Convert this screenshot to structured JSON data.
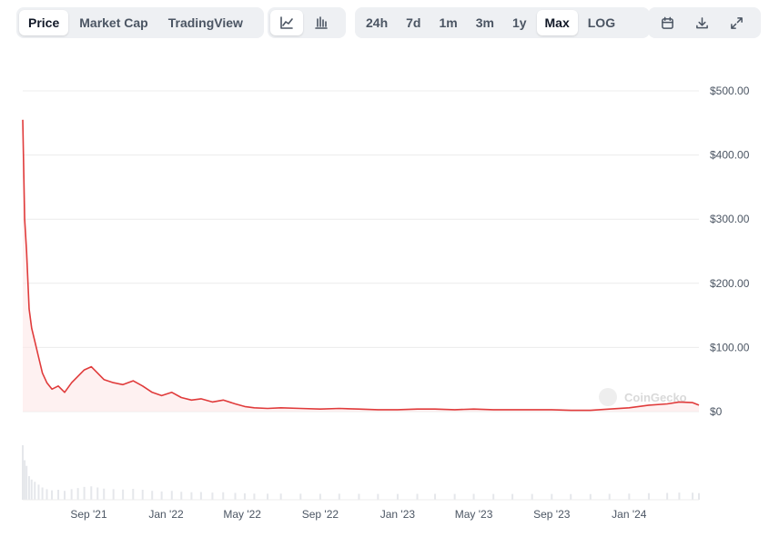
{
  "toolbar": {
    "view_tabs": [
      {
        "label": "Price",
        "active": true
      },
      {
        "label": "Market Cap",
        "active": false
      },
      {
        "label": "TradingView",
        "active": false
      }
    ],
    "chart_types": [
      {
        "icon": "line-chart-icon",
        "active": true
      },
      {
        "icon": "candlestick-chart-icon",
        "active": false
      }
    ],
    "ranges": [
      {
        "label": "24h",
        "active": false
      },
      {
        "label": "7d",
        "active": false
      },
      {
        "label": "1m",
        "active": false
      },
      {
        "label": "3m",
        "active": false
      },
      {
        "label": "1y",
        "active": false
      },
      {
        "label": "Max",
        "active": true
      },
      {
        "label": "LOG",
        "active": false
      }
    ],
    "actions": [
      {
        "icon": "calendar-icon"
      },
      {
        "icon": "download-icon"
      },
      {
        "icon": "expand-icon"
      }
    ]
  },
  "watermark": "CoinGecko",
  "colors": {
    "line": "#e03b3b",
    "fill": "#fde8e8",
    "grid": "#ececec",
    "volume": "#e5e7eb"
  },
  "chart_data": {
    "type": "line",
    "title": "",
    "xlabel": "",
    "ylabel": "",
    "ylim": [
      0,
      500
    ],
    "y_ticks": [
      "$500.00",
      "$400.00",
      "$300.00",
      "$200.00",
      "$100.00",
      "$0"
    ],
    "y_tick_values": [
      500,
      400,
      300,
      200,
      100,
      0
    ],
    "x_ticks": [
      "Sep '21",
      "Jan '22",
      "May '22",
      "Sep '22",
      "Jan '23",
      "May '23",
      "Sep '23",
      "Jan '24"
    ],
    "x_tick_dates": [
      "2021-09-01",
      "2022-01-01",
      "2022-05-01",
      "2022-09-01",
      "2023-01-01",
      "2023-05-01",
      "2023-09-01",
      "2024-01-01"
    ],
    "x_range": [
      "2021-05-20",
      "2024-04-20"
    ],
    "grid": true,
    "series": [
      {
        "x": [
          "2021-05-20",
          "2021-05-23",
          "2021-05-26",
          "2021-05-30",
          "2021-06-03",
          "2021-06-08",
          "2021-06-14",
          "2021-06-20",
          "2021-06-27",
          "2021-07-05",
          "2021-07-15",
          "2021-07-25",
          "2021-08-05",
          "2021-08-15",
          "2021-08-25",
          "2021-09-05",
          "2021-09-15",
          "2021-09-25",
          "2021-10-10",
          "2021-10-25",
          "2021-11-10",
          "2021-11-25",
          "2021-12-10",
          "2021-12-25",
          "2022-01-10",
          "2022-01-25",
          "2022-02-10",
          "2022-02-25",
          "2022-03-15",
          "2022-04-01",
          "2022-04-20",
          "2022-05-05",
          "2022-05-20",
          "2022-06-10",
          "2022-07-01",
          "2022-08-01",
          "2022-09-01",
          "2022-10-01",
          "2022-11-01",
          "2022-12-01",
          "2023-01-01",
          "2023-02-01",
          "2023-03-01",
          "2023-04-01",
          "2023-05-01",
          "2023-06-01",
          "2023-07-01",
          "2023-08-01",
          "2023-09-01",
          "2023-10-01",
          "2023-11-01",
          "2023-12-01",
          "2024-01-01",
          "2024-02-01",
          "2024-03-01",
          "2024-03-20",
          "2024-04-10",
          "2024-04-20"
        ],
        "values": [
          455,
          300,
          250,
          160,
          130,
          110,
          85,
          60,
          45,
          35,
          40,
          30,
          45,
          55,
          65,
          70,
          60,
          50,
          45,
          42,
          48,
          40,
          30,
          25,
          30,
          22,
          18,
          20,
          15,
          18,
          12,
          8,
          6,
          5,
          6,
          5,
          4,
          5,
          4,
          3,
          3,
          4,
          4,
          3,
          4,
          3,
          3,
          3,
          3,
          2,
          2,
          4,
          6,
          10,
          12,
          15,
          14,
          10
        ]
      }
    ]
  }
}
